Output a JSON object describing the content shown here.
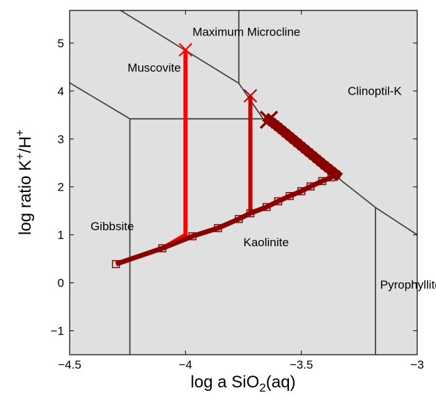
{
  "chart_data": {
    "type": "line",
    "title": "",
    "xlabel": "log a SiO2(aq)",
    "xlabel_parts": {
      "pre": "log a SiO",
      "sub": "2",
      "post": "(aq)"
    },
    "ylabel": "log ratio K+/H+",
    "ylabel_parts": {
      "pre": "log ratio K",
      "sup1": "+",
      "mid": "/H",
      "sup2": "+"
    },
    "xlim": [
      -4.5,
      -3.0
    ],
    "ylim": [
      -1.5,
      5.68
    ],
    "grid": false,
    "background_color": "#e0e0e0",
    "x_ticks": [
      {
        "value": -4.5,
        "label": "−4.5"
      },
      {
        "value": -4.0,
        "label": "−4"
      },
      {
        "value": -3.5,
        "label": "−3.5"
      },
      {
        "value": -3.0,
        "label": "−3"
      }
    ],
    "y_ticks": [
      {
        "value": -1,
        "label": "−1"
      },
      {
        "value": 0,
        "label": "0"
      },
      {
        "value": 1,
        "label": "1"
      },
      {
        "value": 2,
        "label": "2"
      },
      {
        "value": 3,
        "label": "3"
      },
      {
        "value": 4,
        "label": "4"
      },
      {
        "value": 5,
        "label": "5"
      }
    ],
    "regions": [
      {
        "name": "Maximum Microcline",
        "x": -3.97,
        "y": 5.15
      },
      {
        "name": "Muscovite",
        "x": -4.25,
        "y": 4.4
      },
      {
        "name": "Clinoptil-K",
        "x": -3.3,
        "y": 3.92
      },
      {
        "name": "Gibbsite",
        "x": -4.41,
        "y": 1.1
      },
      {
        "name": "Kaolinite",
        "x": -3.75,
        "y": 0.76
      },
      {
        "name": "Pyrophyllite",
        "x": -3.16,
        "y": -0.12
      }
    ],
    "boundaries": [
      {
        "name": "microcline-muscovite",
        "points": [
          [
            -4.28,
            5.68
          ],
          [
            -3.77,
            4.16
          ]
        ]
      },
      {
        "name": "microcline-clinoptil",
        "points": [
          [
            -3.77,
            5.68
          ],
          [
            -3.77,
            4.16
          ]
        ]
      },
      {
        "name": "muscovite-clinoptil",
        "points": [
          [
            -3.77,
            4.16
          ],
          [
            -3.665,
            3.42
          ]
        ]
      },
      {
        "name": "muscovite-kaolinite",
        "points": [
          [
            -4.24,
            3.42
          ],
          [
            -3.665,
            3.42
          ]
        ]
      },
      {
        "name": "muscovite-gibbsite",
        "points": [
          [
            -4.5,
            4.17
          ],
          [
            -4.24,
            3.42
          ]
        ]
      },
      {
        "name": "gibbsite-kaolinite",
        "points": [
          [
            -4.24,
            3.42
          ],
          [
            -4.24,
            -1.5
          ]
        ]
      },
      {
        "name": "kaolinite-clinoptil",
        "points": [
          [
            -3.665,
            3.42
          ],
          [
            -3.18,
            1.57
          ]
        ]
      },
      {
        "name": "pyrophyllite-clinoptil",
        "points": [
          [
            -3.18,
            1.57
          ],
          [
            -3.0,
            1.0
          ]
        ]
      },
      {
        "name": "kaolinite-pyrophyllite",
        "points": [
          [
            -3.18,
            1.57
          ],
          [
            -3.18,
            -1.5
          ]
        ]
      }
    ],
    "series": [
      {
        "name": "path-1",
        "color": "#ff0000",
        "marker": "x",
        "points": [
          [
            -4.0,
            4.86
          ],
          [
            -4.0,
            1.0
          ],
          [
            -4.1,
            0.72
          ]
        ],
        "end_marker": [
          -4.0,
          4.86
        ]
      },
      {
        "name": "path-2",
        "color": "#cc0000",
        "marker": "x",
        "points": [
          [
            -3.72,
            3.9
          ],
          [
            -3.72,
            1.45
          ]
        ],
        "end_marker": [
          -3.72,
          3.9
        ]
      },
      {
        "name": "path-3",
        "color": "#880000",
        "marker": "square",
        "points": [
          [
            -4.3,
            0.39
          ],
          [
            -4.1,
            0.72
          ],
          [
            -3.97,
            0.97
          ],
          [
            -3.86,
            1.14
          ],
          [
            -3.77,
            1.33
          ],
          [
            -3.72,
            1.45
          ],
          [
            -3.65,
            1.58
          ],
          [
            -3.6,
            1.7
          ],
          [
            -3.55,
            1.81
          ],
          [
            -3.5,
            1.91
          ],
          [
            -3.46,
            2.01
          ],
          [
            -3.41,
            2.12
          ],
          [
            -3.37,
            2.2
          ],
          [
            -3.35,
            2.26
          ]
        ],
        "dense_points": [
          [
            -3.35,
            2.26
          ],
          [
            -3.4,
            2.45
          ],
          [
            -3.45,
            2.65
          ],
          [
            -3.5,
            2.85
          ],
          [
            -3.55,
            3.05
          ],
          [
            -3.6,
            3.25
          ],
          [
            -3.64,
            3.4
          ]
        ],
        "end_marker": [
          -3.64,
          3.4
        ]
      }
    ]
  }
}
